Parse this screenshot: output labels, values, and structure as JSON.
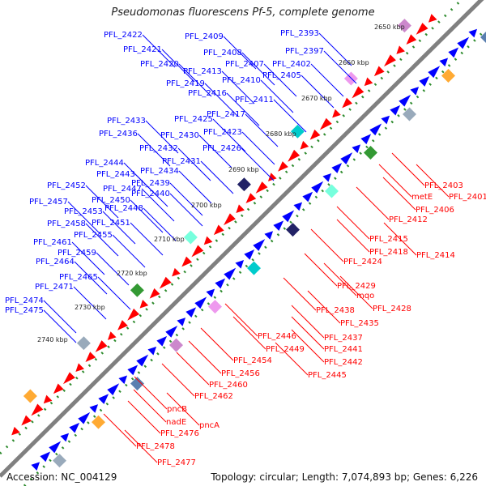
{
  "title": "Pseudomonas fluorescens Pf-5, complete genome",
  "accession": "Accession: NC_004129",
  "summary": "Topology: circular; Length: 7,074,893 bp; Genes: 6,226",
  "colors": {
    "forward": "#0000ff",
    "reverse": "#ff0000",
    "backbone": "#808080",
    "tick_dots": "#2e8b2e"
  },
  "kbp_ticks": [
    "2650 kbp",
    "2660 kbp",
    "2670 kbp",
    "2680 kbp",
    "2690 kbp",
    "2700 kbp",
    "2710 kbp",
    "2720 kbp",
    "2730 kbp",
    "2740 kbp"
  ],
  "forward_labels": [
    "PFL_2422",
    "PFL_2409",
    "PFL_2393",
    "PFL_2421",
    "PFL_2408",
    "PFL_2397",
    "PFL_2420",
    "PFL_2407",
    "PFL_2402",
    "PFL_2413",
    "PFL_2405",
    "PFL_2419",
    "PFL_2410",
    "PFL_2416",
    "PFL_2411",
    "PFL_2417",
    "PFL_2433",
    "PFL_2425",
    "PFL_2436",
    "PFL_2430",
    "PFL_2423",
    "PFL_2432",
    "PFL_2426",
    "PFL_2431",
    "PFL_2444",
    "PFL_2434",
    "PFL_2443",
    "PFL_2439",
    "PFL_2452",
    "PFL_2447",
    "PFL_2440",
    "PFL_2457",
    "PFL_2450",
    "PFL_2453",
    "PFL_2448",
    "PFL_2458",
    "PFL_2451",
    "PFL_2455",
    "PFL_2461",
    "PFL_2459",
    "PFL_2464",
    "PFL_2465",
    "PFL_2471",
    "PFL_2474",
    "PFL_2475"
  ],
  "reverse_labels": [
    "PFL_2403",
    "PFL_2401",
    "metE",
    "PFL_2406",
    "PFL_2412",
    "PFL_2415",
    "PFL_2418",
    "PFL_2414",
    "PFL_2424",
    "PFL_2429",
    "mqo",
    "PFL_2428",
    "PFL_2438",
    "PFL_2435",
    "PFL_2437",
    "PFL_2446",
    "PFL_2441",
    "PFL_2449",
    "PFL_2442",
    "PFL_2454",
    "PFL_2445",
    "PFL_2456",
    "PFL_2460",
    "PFL_2462",
    "pncB",
    "nadE",
    "pncA",
    "PFL_2476",
    "PFL_2478",
    "PFL_2477"
  ]
}
